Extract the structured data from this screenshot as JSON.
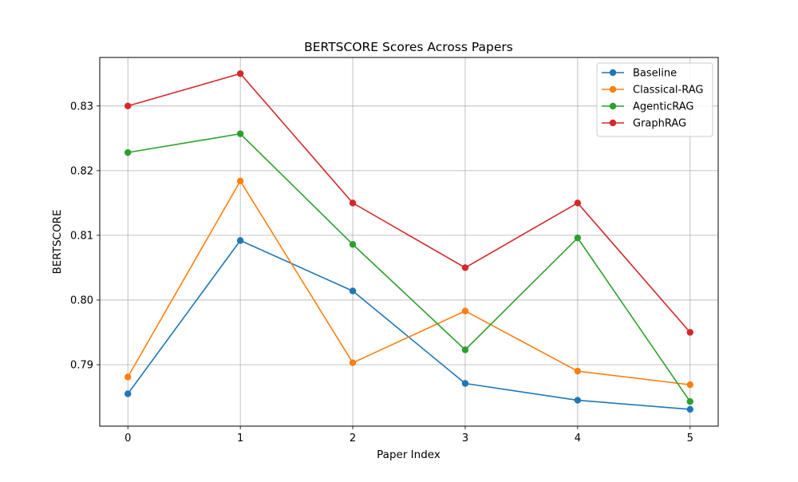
{
  "chart_data": {
    "type": "line",
    "title": "BERTSCORE Scores Across Papers",
    "xlabel": "Paper Index",
    "ylabel": "BERTSCORE",
    "x": [
      0,
      1,
      2,
      3,
      4,
      5
    ],
    "xlim": [
      -0.25,
      5.25
    ],
    "ylim": [
      0.7805,
      0.8375
    ],
    "xticks": [
      "0",
      "1",
      "2",
      "3",
      "4",
      "5"
    ],
    "yticks": [
      "0.79",
      "0.80",
      "0.81",
      "0.82",
      "0.83"
    ],
    "ytick_values": [
      0.79,
      0.8,
      0.81,
      0.82,
      0.83
    ],
    "grid": true,
    "legend_position": "top-right",
    "series": [
      {
        "name": "Baseline",
        "color": "#1f77b4",
        "values": [
          0.7855,
          0.8092,
          0.8014,
          0.7871,
          0.7845,
          0.7831
        ]
      },
      {
        "name": "Classical-RAG",
        "color": "#ff7f0e",
        "values": [
          0.7881,
          0.8184,
          0.7903,
          0.7983,
          0.789,
          0.7869
        ]
      },
      {
        "name": "AgenticRAG",
        "color": "#2ca02c",
        "values": [
          0.8228,
          0.8257,
          0.8086,
          0.7923,
          0.8096,
          0.7843
        ]
      },
      {
        "name": "GraphRAG",
        "color": "#d62728",
        "values": [
          0.83,
          0.835,
          0.815,
          0.805,
          0.815,
          0.795
        ]
      }
    ]
  }
}
